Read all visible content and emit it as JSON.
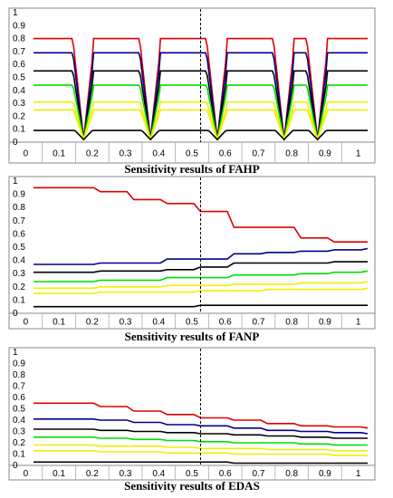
{
  "chart_data": [
    {
      "type": "line",
      "title": "Sensitivity results of FAHP",
      "ylim": [
        0,
        1
      ],
      "yticks": [
        "0",
        "0.1",
        "0.2",
        "0.3",
        "0.4",
        "0.5",
        "0.6",
        "0.7",
        "0.8",
        "0.9",
        "1"
      ],
      "xticks": [
        "0",
        "0.1",
        "0.2",
        "0.3",
        "0.4",
        "0.5",
        "0.6",
        "0.7",
        "0.8",
        "0.9",
        "1"
      ],
      "reference_line_x": 0.5,
      "series": [
        {
          "color": "#e00000",
          "pattern": "dips",
          "base": 0.8
        },
        {
          "color": "#00008b",
          "pattern": "dips",
          "base": 0.69
        },
        {
          "color": "#000000",
          "pattern": "dips",
          "base": 0.55
        },
        {
          "color": "#00dd00",
          "pattern": "dips",
          "base": 0.44
        },
        {
          "color": "#f0f000",
          "pattern": "dips",
          "base": 0.31
        },
        {
          "color": "#f0f000",
          "pattern": "dips",
          "base": 0.25
        },
        {
          "color": "#000000",
          "pattern": "dips",
          "base": 0.09
        }
      ],
      "dip_centers": [
        0.15,
        0.35,
        0.55,
        0.75,
        0.85
      ],
      "grid": false
    },
    {
      "type": "line",
      "title": "Sensitivity results of FANP",
      "ylim": [
        0,
        1
      ],
      "yticks": [
        "0",
        "0.1",
        "0.2",
        "0.3",
        "0.4",
        "0.5",
        "0.6",
        "0.7",
        "0.8",
        "0.9",
        "1"
      ],
      "xticks": [
        "0",
        "0.1",
        "0.2",
        "0.3",
        "0.4",
        "0.5",
        "0.6",
        "0.7",
        "0.8",
        "0.9",
        "1"
      ],
      "reference_line_x": 0.5,
      "x": [
        0,
        0.1,
        0.2,
        0.3,
        0.4,
        0.5,
        0.6,
        0.7,
        0.8,
        0.9,
        1
      ],
      "series": [
        {
          "color": "#e00000",
          "values": [
            0.95,
            0.95,
            0.92,
            0.86,
            0.83,
            0.77,
            0.65,
            0.65,
            0.57,
            0.54,
            0.54
          ]
        },
        {
          "color": "#00008b",
          "values": [
            0.37,
            0.37,
            0.38,
            0.38,
            0.41,
            0.41,
            0.45,
            0.46,
            0.47,
            0.48,
            0.49
          ]
        },
        {
          "color": "#000000",
          "values": [
            0.31,
            0.31,
            0.32,
            0.32,
            0.33,
            0.35,
            0.38,
            0.38,
            0.38,
            0.39,
            0.39
          ]
        },
        {
          "color": "#00dd00",
          "values": [
            0.24,
            0.24,
            0.25,
            0.25,
            0.27,
            0.27,
            0.29,
            0.29,
            0.3,
            0.31,
            0.32
          ]
        },
        {
          "color": "#f0f000",
          "values": [
            0.19,
            0.19,
            0.2,
            0.2,
            0.21,
            0.21,
            0.22,
            0.22,
            0.23,
            0.23,
            0.24
          ]
        },
        {
          "color": "#f0f000",
          "values": [
            0.15,
            0.15,
            0.16,
            0.16,
            0.16,
            0.17,
            0.17,
            0.18,
            0.18,
            0.18,
            0.19
          ]
        },
        {
          "color": "#000000",
          "values": [
            0.05,
            0.05,
            0.05,
            0.05,
            0.05,
            0.06,
            0.06,
            0.06,
            0.06,
            0.06,
            0.06
          ]
        }
      ],
      "grid": false
    },
    {
      "type": "line",
      "title": "Sensitivity results of EDAS",
      "ylim": [
        0,
        1
      ],
      "yticks": [
        "0",
        "0.1",
        "0.2",
        "0.3",
        "0.4",
        "0.5",
        "0.6",
        "0.7",
        "0.8",
        "0.9",
        "1"
      ],
      "xticks": [
        "0",
        "0.1",
        "0.2",
        "0.3",
        "0.4",
        "0.5",
        "0.6",
        "0.7",
        "0.8",
        "0.9",
        "1"
      ],
      "reference_line_x": 0.5,
      "x": [
        0,
        0.1,
        0.2,
        0.3,
        0.4,
        0.5,
        0.6,
        0.7,
        0.8,
        0.9,
        1
      ],
      "series": [
        {
          "color": "#e00000",
          "values": [
            0.55,
            0.55,
            0.52,
            0.48,
            0.45,
            0.42,
            0.4,
            0.37,
            0.35,
            0.34,
            0.33
          ]
        },
        {
          "color": "#00008b",
          "values": [
            0.41,
            0.41,
            0.4,
            0.38,
            0.36,
            0.35,
            0.33,
            0.31,
            0.3,
            0.29,
            0.28
          ]
        },
        {
          "color": "#000000",
          "values": [
            0.32,
            0.32,
            0.31,
            0.3,
            0.29,
            0.28,
            0.27,
            0.26,
            0.25,
            0.24,
            0.24
          ]
        },
        {
          "color": "#00dd00",
          "values": [
            0.25,
            0.25,
            0.24,
            0.23,
            0.22,
            0.21,
            0.2,
            0.2,
            0.19,
            0.18,
            0.18
          ]
        },
        {
          "color": "#f0f000",
          "values": [
            0.18,
            0.18,
            0.17,
            0.17,
            0.16,
            0.15,
            0.15,
            0.14,
            0.14,
            0.13,
            0.13
          ]
        },
        {
          "color": "#f0f000",
          "values": [
            0.13,
            0.13,
            0.12,
            0.12,
            0.11,
            0.11,
            0.1,
            0.1,
            0.1,
            0.09,
            0.09
          ]
        },
        {
          "color": "#000000",
          "values": [
            0.03,
            0.03,
            0.03,
            0.03,
            0.03,
            0.03,
            0.02,
            0.02,
            0.02,
            0.02,
            0.02
          ]
        }
      ],
      "grid": false
    }
  ]
}
